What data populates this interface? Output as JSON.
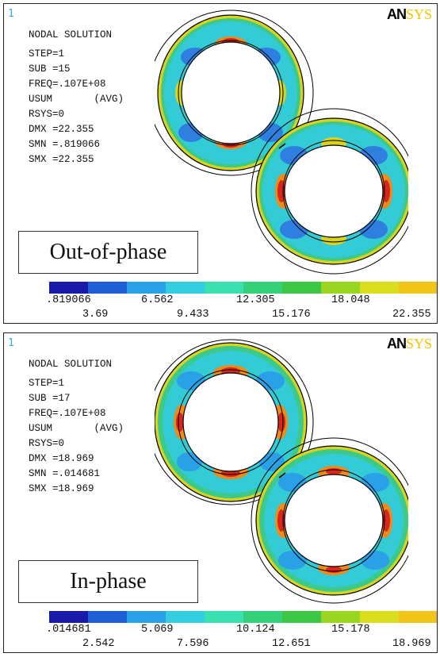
{
  "panels": [
    {
      "window_number": "1",
      "logo": {
        "dark": "AN",
        "light": "SYS"
      },
      "info": {
        "title": "NODAL SOLUTION",
        "step": "STEP=1",
        "sub": "SUB =15",
        "freq": "FREQ=.107E+08",
        "usum": "USUM       (AVG)",
        "rsys": "RSYS=0",
        "dmx": "DMX =22.355",
        "smn": "SMN =.819066",
        "smx": "SMX =22.355"
      },
      "phase_label": "Out-of-phase",
      "scale_row1": [
        ".819066",
        "6.562",
        "12.305",
        "18.048"
      ],
      "scale_row2": [
        "3.69",
        "9.433",
        "15.176",
        "22.355"
      ]
    },
    {
      "window_number": "1",
      "logo": {
        "dark": "AN",
        "light": "SYS"
      },
      "info": {
        "title": "NODAL SOLUTION",
        "step": "STEP=1",
        "sub": "SUB =17",
        "freq": "FREQ=.107E+08",
        "usum": "USUM       (AVG)",
        "rsys": "RSYS=0",
        "dmx": "DMX =18.969",
        "smn": "SMN =.014681",
        "smx": "SMX =18.969"
      },
      "phase_label": "In-phase",
      "scale_row1": [
        ".014681",
        "5.069",
        "10.124",
        "15.178"
      ],
      "scale_row2": [
        "2.542",
        "7.596",
        "12.651",
        "18.969"
      ]
    }
  ],
  "colors": {
    "contour_scale": [
      "#1a1aa8",
      "#1f5fd6",
      "#2aa0e6",
      "#33cde0",
      "#3be0b0",
      "#35d07a",
      "#3cc845",
      "#9ad61f",
      "#d9df1e",
      "#f0c419",
      "#f08a1a",
      "#e0301a"
    ],
    "ring_low": "#2f7fe0",
    "ring_mid": "#33cbd6",
    "ring_green": "#3cc98a",
    "ring_yellow": "#d8d41e",
    "ring_orange": "#ee8a18",
    "ring_red": "#d8261a"
  }
}
